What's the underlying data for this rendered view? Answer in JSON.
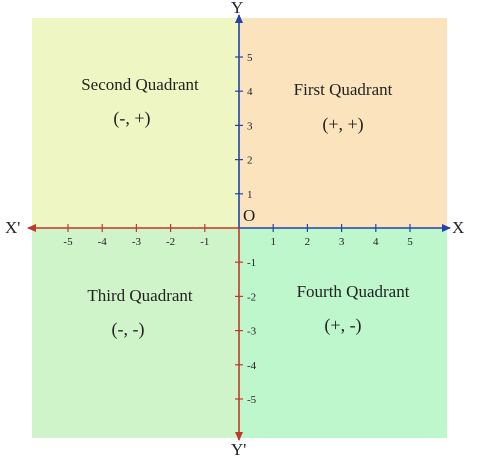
{
  "colors": {
    "quadrant_1": "#fbe4bd",
    "quadrant_2": "#eef7c3",
    "quadrant_3": "#d0f4c9",
    "quadrant_4": "#bef7cc",
    "x_positive_axis": "#2244aa",
    "x_negative_axis": "#c0392b",
    "y_positive_axis": "#2244aa",
    "y_negative_axis": "#c0392b"
  },
  "axes": {
    "x": "X",
    "x_prime": "X'",
    "y": "Y",
    "y_prime": "Y'",
    "origin": "O"
  },
  "quadrants": {
    "first": {
      "name": "First Quadrant",
      "sign": "(+, +)"
    },
    "second": {
      "name": "Second Quadrant",
      "sign": "(-, +)"
    },
    "third": {
      "name": "Third Quadrant",
      "sign": "(-, -)"
    },
    "fourth": {
      "name": "Fourth Quadrant",
      "sign": "(+, -)"
    }
  },
  "ticks": {
    "x_positive": [
      "1",
      "2",
      "3",
      "4",
      "5"
    ],
    "x_negative": [
      "-1",
      "-2",
      "-3",
      "-4",
      "-5"
    ],
    "y_positive": [
      "1",
      "2",
      "3",
      "4",
      "5"
    ],
    "y_negative": [
      "-1",
      "-2",
      "-3",
      "-4",
      "-5"
    ]
  }
}
